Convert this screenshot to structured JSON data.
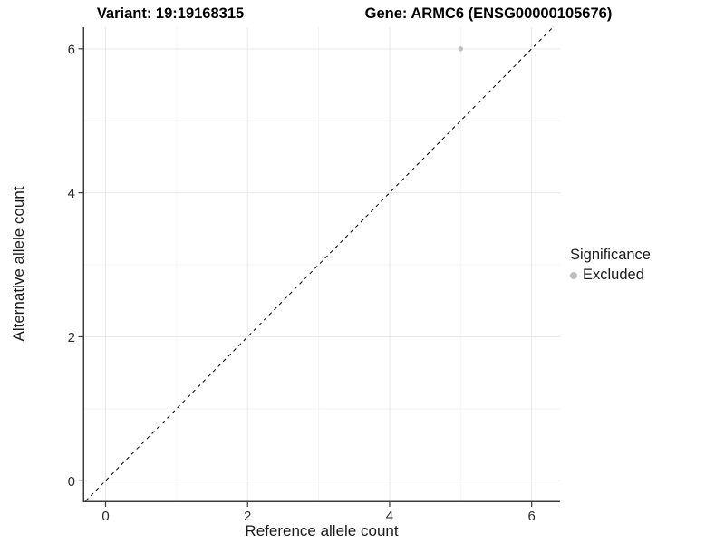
{
  "header": {
    "variant_title": "Variant: 19:19168315",
    "gene_title": "Gene: ARMC6 (ENSG00000105676)"
  },
  "axes": {
    "x_label": "Reference allele count",
    "y_label": "Alternative allele count",
    "x_tick_labels": [
      "0",
      "2",
      "4",
      "6"
    ],
    "y_tick_labels": [
      "0",
      "2",
      "4",
      "6"
    ]
  },
  "legend": {
    "title": "Significance",
    "entries": [
      {
        "label": "Excluded",
        "color": "#bebebe"
      }
    ]
  },
  "chart_data": {
    "type": "scatter",
    "title": "Variant: 19:19168315 — Gene: ARMC6 (ENSG00000105676)",
    "xlabel": "Reference allele count",
    "ylabel": "Alternative allele count",
    "points": [
      {
        "x": 5,
        "y": 6,
        "series": "Excluded"
      }
    ],
    "series": [
      {
        "name": "Excluded",
        "color": "#bebebe",
        "values": [
          [
            5,
            6
          ]
        ]
      }
    ],
    "reference_line": {
      "slope": 1,
      "intercept": 0,
      "style": "dashed",
      "color": "#000000"
    },
    "x_ticks": [
      0,
      2,
      4,
      6
    ],
    "y_ticks": [
      0,
      2,
      4,
      6
    ],
    "x_minor_ticks": [
      1,
      3,
      5
    ],
    "y_minor_ticks": [
      1,
      3,
      5
    ],
    "xlim": [
      -0.3,
      6.4
    ],
    "ylim": [
      -0.28,
      6.3
    ],
    "grid": {
      "on": true,
      "major_color": "#e9e9e9",
      "minor_color": "#f4f4f4"
    },
    "axis_color": "#3c3c3c",
    "tick_label_color": "#2b2b2b",
    "point_color": "#bebebe",
    "legend_title": "Significance",
    "legend_position": "right"
  }
}
